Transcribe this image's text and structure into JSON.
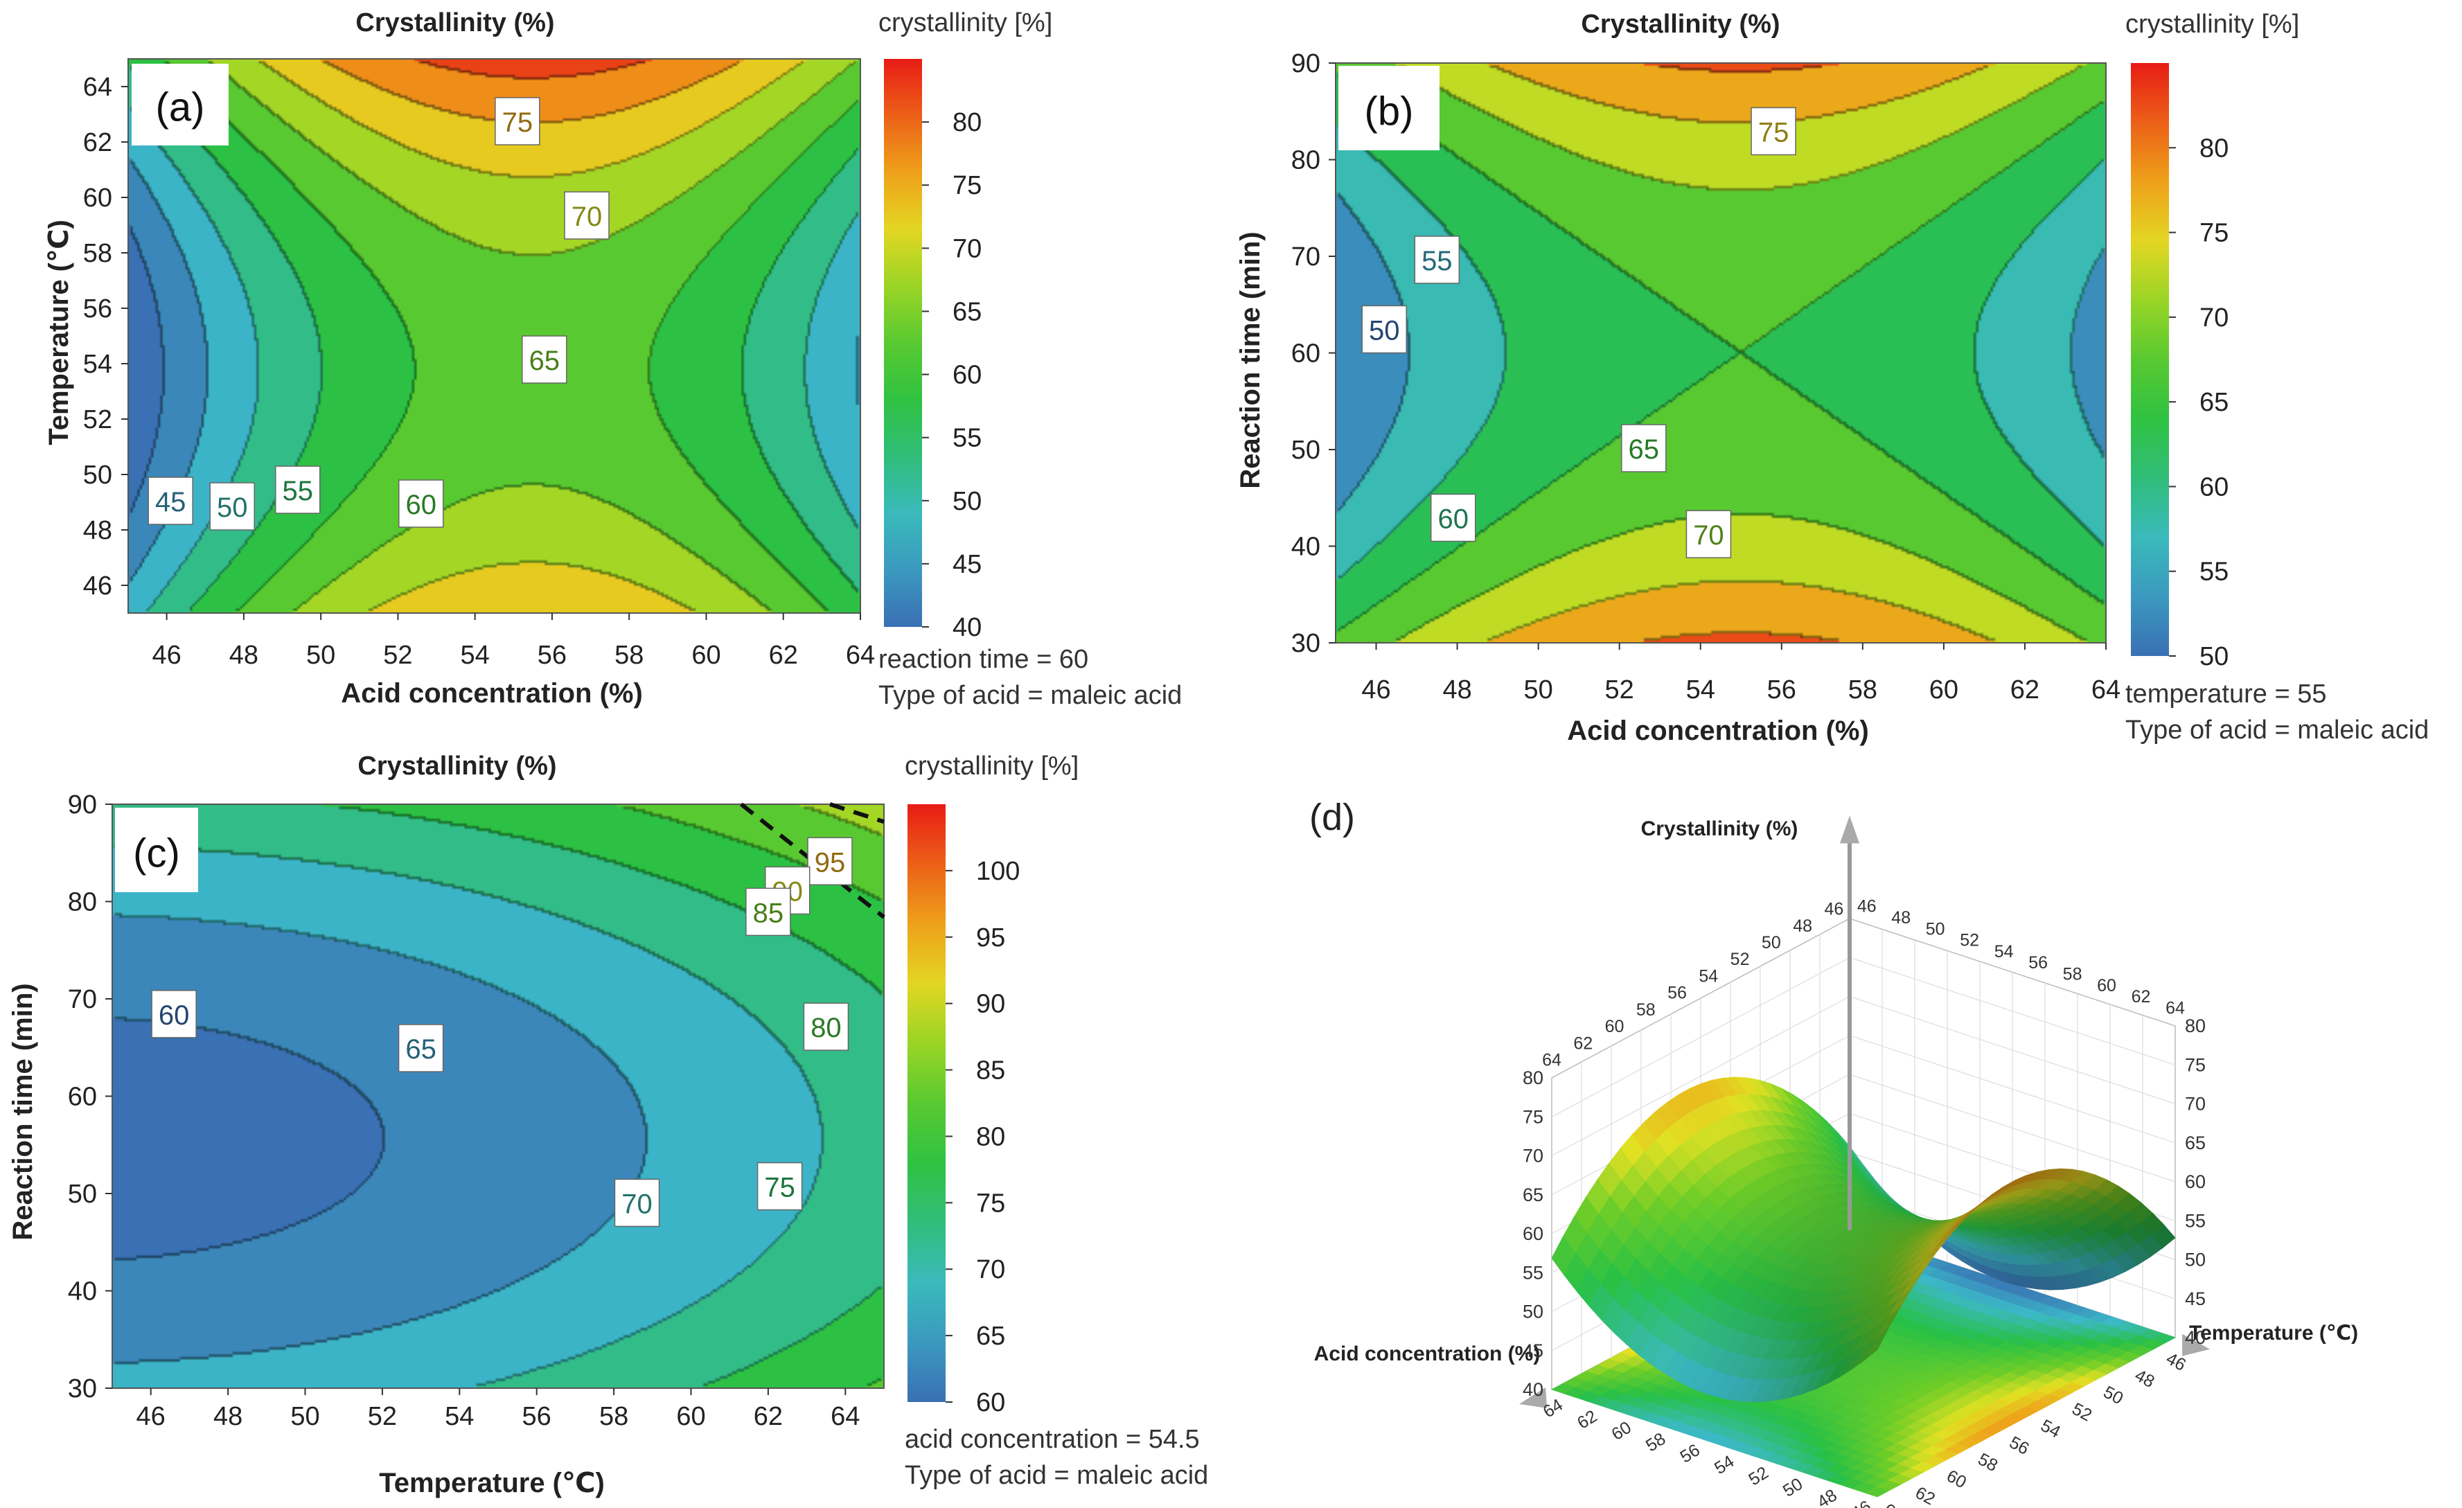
{
  "chart_data": [
    {
      "id": "a",
      "type": "contour",
      "panel_label": "(a)",
      "title": "Crystallinity (%)",
      "xlabel": "Acid concentration (%)",
      "ylabel": "Temperature (℃)",
      "xlim": [
        45,
        64
      ],
      "ylim": [
        45,
        65
      ],
      "x_ticks": [
        46,
        48,
        50,
        52,
        54,
        56,
        58,
        60,
        62,
        64
      ],
      "y_ticks": [
        46,
        48,
        50,
        52,
        54,
        56,
        58,
        60,
        62,
        64
      ],
      "colorbar": {
        "title": "crystallinity [%]",
        "range": [
          40,
          85
        ],
        "ticks": [
          40,
          45,
          50,
          55,
          60,
          65,
          70,
          75,
          80
        ]
      },
      "model": {
        "x0": 55.5,
        "y0": 55,
        "sx": 9.5,
        "sy": 10,
        "c0": 62.5,
        "a": -22,
        "b": 16,
        "c": 4,
        "xy": 0
      },
      "contour_labels": [
        {
          "text": "75",
          "x": 55.1,
          "y": 62.7
        },
        {
          "text": "70",
          "x": 56.9,
          "y": 59.3
        },
        {
          "text": "65",
          "x": 55.8,
          "y": 54.1
        },
        {
          "text": "60",
          "x": 52.6,
          "y": 48.9
        },
        {
          "text": "55",
          "x": 49.4,
          "y": 49.4
        },
        {
          "text": "50",
          "x": 47.7,
          "y": 48.8
        },
        {
          "text": "45",
          "x": 46.1,
          "y": 49.0
        }
      ],
      "footnotes": [
        "reaction time = 60",
        "Type of acid = maleic acid"
      ]
    },
    {
      "id": "b",
      "type": "contour",
      "panel_label": "(b)",
      "title": "Crystallinity (%)",
      "xlabel": "Acid concentration (%)",
      "ylabel": "Reaction time (min)",
      "xlim": [
        45,
        64
      ],
      "ylim": [
        30,
        90
      ],
      "x_ticks": [
        46,
        48,
        50,
        52,
        54,
        56,
        58,
        60,
        62,
        64
      ],
      "y_ticks": [
        30,
        40,
        50,
        60,
        70,
        80,
        90
      ],
      "colorbar": {
        "title": "crystallinity [%]",
        "range": [
          50,
          85
        ],
        "ticks": [
          50,
          55,
          60,
          65,
          70,
          75,
          80
        ]
      },
      "model": {
        "x0": 55,
        "y0": 60,
        "sx": 10,
        "sy": 30,
        "c0": 65,
        "a": -15,
        "b": 16,
        "c": 0,
        "xy": 0
      },
      "contour_labels": [
        {
          "text": "75",
          "x": 55.8,
          "y": 82.8
        },
        {
          "text": "55",
          "x": 47.5,
          "y": 69.5
        },
        {
          "text": "50",
          "x": 46.2,
          "y": 62.3
        },
        {
          "text": "65",
          "x": 52.6,
          "y": 50.0
        },
        {
          "text": "60",
          "x": 47.9,
          "y": 42.8
        },
        {
          "text": "70",
          "x": 54.2,
          "y": 41.1
        }
      ],
      "footnotes": [
        "temperature = 55",
        "Type of acid = maleic acid"
      ]
    },
    {
      "id": "c",
      "type": "contour",
      "panel_label": "(c)",
      "title": "Crystallinity (%)",
      "xlabel": "Temperature (℃)",
      "ylabel": "Reaction time (min)",
      "xlim": [
        45,
        65
      ],
      "ylim": [
        30,
        90
      ],
      "x_ticks": [
        46,
        48,
        50,
        52,
        54,
        56,
        58,
        60,
        62,
        64
      ],
      "y_ticks": [
        30,
        40,
        50,
        60,
        70,
        80,
        90
      ],
      "colorbar": {
        "title": "crystallinity [%]",
        "range": [
          60,
          105
        ],
        "ticks": [
          60,
          65,
          70,
          75,
          80,
          85,
          90,
          95,
          100
        ]
      },
      "model": {
        "x0": 44,
        "y0": 68,
        "sx": 10,
        "sy": 30,
        "c0": 60,
        "a": 3.2,
        "b": 12,
        "c": 10,
        "xy": 0
      },
      "contour_labels": [
        {
          "text": "95",
          "x": 63.6,
          "y": 84.0
        },
        {
          "text": "90",
          "x": 62.5,
          "y": 81.0
        },
        {
          "text": "85",
          "x": 62.0,
          "y": 78.8
        },
        {
          "text": "80",
          "x": 63.5,
          "y": 67.0
        },
        {
          "text": "60",
          "x": 46.6,
          "y": 68.3
        },
        {
          "text": "65",
          "x": 53.0,
          "y": 64.8
        },
        {
          "text": "70",
          "x": 58.6,
          "y": 48.9
        },
        {
          "text": "75",
          "x": 62.3,
          "y": 50.6
        }
      ],
      "footnotes": [
        "acid concentration = 54.5",
        "Type of acid = maleic acid"
      ]
    },
    {
      "id": "d",
      "type": "surface3d",
      "panel_label": "(d)",
      "zlabel": "Crystallinity (%)",
      "xlabel": "Acid concentration (%)",
      "ylabel": "Temperature (℃)",
      "x_ticks": [
        46,
        48,
        50,
        52,
        54,
        56,
        58,
        60,
        62,
        64
      ],
      "y_ticks": [
        46,
        48,
        50,
        52,
        54,
        56,
        58,
        60,
        62,
        64
      ],
      "z_ticks": [
        40,
        45,
        50,
        55,
        60,
        65,
        70,
        75,
        80
      ],
      "zlim": [
        40,
        80
      ]
    }
  ]
}
